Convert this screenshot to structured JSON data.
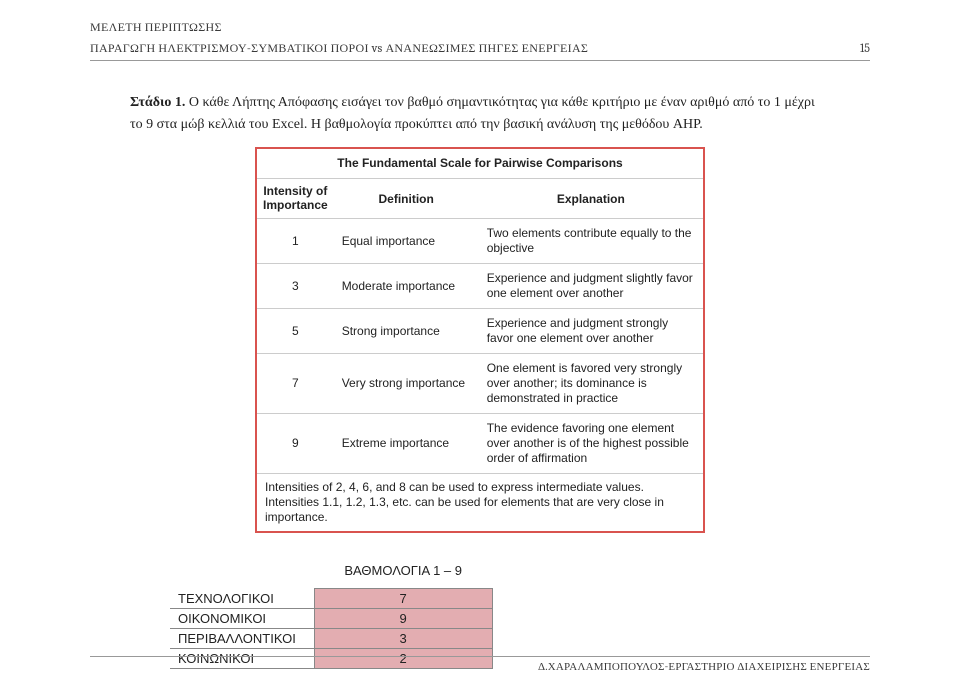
{
  "header": {
    "line1": "ΜΕΛΕΤΗ ΠΕΡΙΠΤΩΣΗΣ",
    "line2": "ΠΑΡΑΓΩΓΗ ΗΛΕΚΤΡΙΣΜΟΥ-ΣΥΜΒΑΤΙΚΟΙ ΠΟΡΟΙ vs ΑΝΑΝΕΩΣΙΜΕΣ ΠΗΓΕΣ ΕΝΕΡΓΕΙΑΣ",
    "page": "15"
  },
  "para": {
    "p1a": "Στάδιο 1.",
    "p1b": " Ο κάθε Λήπτης Απόφασης εισάγει τον βαθμό σημαντικότητας για κάθε κριτήριο με έναν αριθμό από το 1 μέχρι το 9 στα μώβ κελλιά του Excel. Η βαθμολογία προκύπτει από την βασική ανάλυση της μεθόδου AHP."
  },
  "scale": {
    "title": "The Fundamental Scale for Pairwise Comparisons",
    "head": {
      "c1a": "Intensity of",
      "c1b": "Importance",
      "c2": "Definition",
      "c3": "Explanation"
    },
    "rows": [
      {
        "i": "1",
        "d": "Equal importance",
        "e": "Two elements contribute equally to the objective"
      },
      {
        "i": "3",
        "d": "Moderate importance",
        "e": "Experience and judgment slightly favor one element over another"
      },
      {
        "i": "5",
        "d": "Strong importance",
        "e": "Experience and judgment strongly favor one element over another"
      },
      {
        "i": "7",
        "d": "Very strong importance",
        "e": "One element is favored very strongly over another; its dominance is demonstrated in practice"
      },
      {
        "i": "9",
        "d": "Extreme importance",
        "e": "The evidence favoring one element over another is of the highest possible order of affirmation"
      }
    ],
    "foot": "Intensities of 2, 4, 6, and 8 can be used to express intermediate values. Intensities 1.1, 1.2, 1.3, etc. can be used for elements that are very close in importance."
  },
  "scores": {
    "heading": "ΒΑΘΜΟΛΟΓΙΑ 1 – 9",
    "rows": [
      {
        "label": "ΤΕΧΝΟΛΟΓΙΚΟΙ",
        "value": "7"
      },
      {
        "label": "ΟΙΚΟΝΟΜΙΚΟΙ",
        "value": "9"
      },
      {
        "label": "ΠΕΡΙΒΑΛΛΟΝΤΙΚΟΙ",
        "value": "3"
      },
      {
        "label": "ΚΟΙΝΩΝΙΚΟΙ",
        "value": "2"
      }
    ],
    "cell_bg": "#e3adb1"
  },
  "footer": "Δ.ΧΑΡΑΛΑΜΠΟΠΟΥΛΟΣ-ΕΡΓΑΣΤΗΡΙΟ ΔΙΑΧΕΙΡΙΣΗΣ ΕΝΕΡΓΕΙΑΣ"
}
